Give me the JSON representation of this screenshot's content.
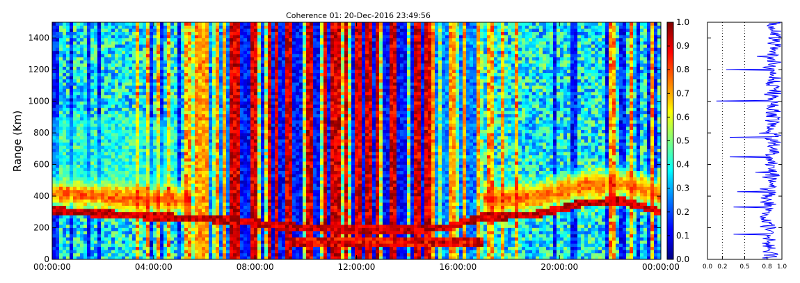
{
  "chart_data": [
    {
      "type": "heatmap",
      "title": "Coherence 01: 20-Dec-2016 23:49:56",
      "ylabel": "Range (Km)",
      "xlabel": "",
      "x_tick_labels": [
        "00:00:00",
        "04:00:00",
        "08:00:00",
        "12:00:00",
        "16:00:00",
        "20:00:00",
        "00:00:00"
      ],
      "x_range_hours": [
        0,
        24
      ],
      "y_ticks": [
        0,
        200,
        400,
        600,
        800,
        1000,
        1200,
        1400
      ],
      "ylim": [
        0,
        1500
      ],
      "colorscale": "jet",
      "clim": [
        0,
        1
      ],
      "colorbar_ticks": [
        "0.0",
        "0.1",
        "0.2",
        "0.3",
        "0.4",
        "0.5",
        "0.6",
        "0.7",
        "0.8",
        "0.9",
        "1.0"
      ],
      "grid": false,
      "features": {
        "daytime_high_coherence_hours": [
          5.5,
          17
        ],
        "layer_trace": [
          {
            "hour": 0,
            "range_km": 310
          },
          {
            "hour": 2,
            "range_km": 290
          },
          {
            "hour": 4,
            "range_km": 270
          },
          {
            "hour": 5.5,
            "range_km": 260
          },
          {
            "hour": 7,
            "range_km": 250
          },
          {
            "hour": 8.5,
            "range_km": 220
          },
          {
            "hour": 10,
            "range_km": 200
          },
          {
            "hour": 12,
            "range_km": 190
          },
          {
            "hour": 14,
            "range_km": 190
          },
          {
            "hour": 15.5,
            "range_km": 200
          },
          {
            "hour": 17,
            "range_km": 270
          },
          {
            "hour": 19,
            "range_km": 280
          },
          {
            "hour": 21,
            "range_km": 360
          },
          {
            "hour": 22.5,
            "range_km": 370
          },
          {
            "hour": 24,
            "range_km": 300
          }
        ],
        "low_band_hours": [
          9.5,
          17
        ],
        "low_band_range_km": 110,
        "band_center_night_km": 420
      }
    },
    {
      "type": "line",
      "series": [
        {
          "name": "",
          "color": "#0000ff"
        }
      ],
      "x_tick_labels": [
        "0.0",
        "0.2",
        "0.5",
        "0.8",
        "1.0"
      ],
      "x_ticks": [
        0,
        0.2,
        0.5,
        0.8,
        1.0
      ],
      "xlim": [
        0,
        1
      ],
      "ylim": [
        0,
        1500
      ],
      "profile": [
        {
          "range_km": 0,
          "value": 0.85
        },
        {
          "range_km": 100,
          "value": 0.82
        },
        {
          "range_km": 200,
          "value": 0.84
        },
        {
          "range_km": 300,
          "value": 0.8
        },
        {
          "range_km": 400,
          "value": 0.83
        },
        {
          "range_km": 500,
          "value": 0.86
        },
        {
          "range_km": 600,
          "value": 0.87
        },
        {
          "range_km": 700,
          "value": 0.88
        },
        {
          "range_km": 800,
          "value": 0.88
        },
        {
          "range_km": 900,
          "value": 0.87
        },
        {
          "range_km": 1000,
          "value": 0.88
        },
        {
          "range_km": 1100,
          "value": 0.89
        },
        {
          "range_km": 1200,
          "value": 0.89
        },
        {
          "range_km": 1300,
          "value": 0.9
        },
        {
          "range_km": 1400,
          "value": 0.9
        },
        {
          "range_km": 1500,
          "value": 0.91
        }
      ],
      "dips": [
        {
          "range_km": 1000,
          "value": 0.12
        },
        {
          "range_km": 1200,
          "value": 0.25
        },
        {
          "range_km": 770,
          "value": 0.3
        },
        {
          "range_km": 650,
          "value": 0.3
        },
        {
          "range_km": 430,
          "value": 0.4
        },
        {
          "range_km": 330,
          "value": 0.35
        },
        {
          "range_km": 160,
          "value": 0.35
        }
      ],
      "reference_lines": [
        0.2,
        0.5
      ],
      "grid": false
    }
  ]
}
